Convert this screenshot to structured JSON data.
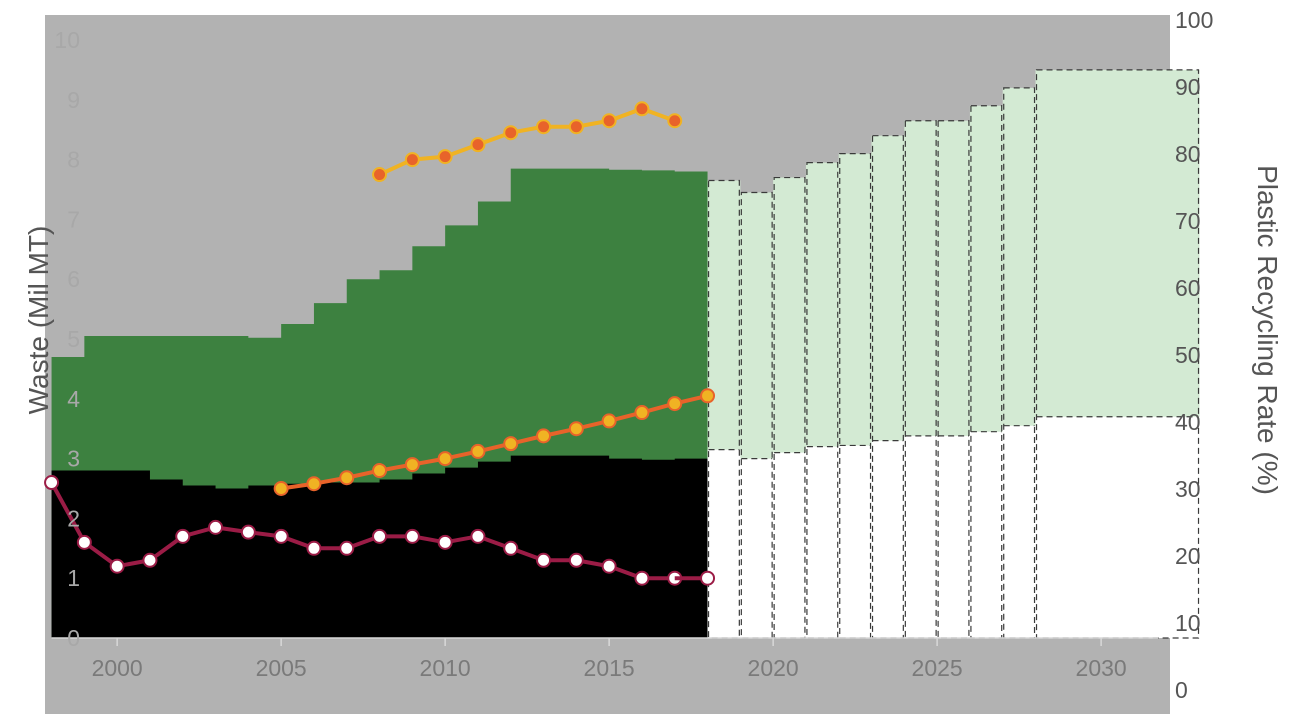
{
  "chart_data": {
    "type": "area",
    "title": "",
    "ylabel": "Waste (Mil MT)",
    "y2label": "Plastic Recycling Rate (%)",
    "xlim": [
      1997.8,
      2032.1
    ],
    "ylim": [
      0,
      10
    ],
    "y2lim": [
      0,
      100
    ],
    "x_ticks": [
      "2000",
      "2005",
      "2010",
      "2015",
      "2020",
      "2025",
      "2030"
    ],
    "y_ticks": [
      "0",
      "1",
      "2",
      "3",
      "4",
      "5",
      "6",
      "7",
      "8",
      "9",
      "10"
    ],
    "y2_ticks": [
      "0",
      "10",
      "20",
      "30",
      "40",
      "50",
      "60",
      "70",
      "80",
      "90",
      "100"
    ],
    "colors": {
      "plot_bg": "#b2b2b2",
      "historical_total": "#3d8140",
      "historical_base": "#000000",
      "projected_total": "#d3ead3",
      "projected_base": "#ffffff",
      "maroon_line": "#9b1c46",
      "orange_line": "#e8632a",
      "yellow_line": "#f0b323"
    },
    "series": [
      {
        "style": "historical-total-area",
        "x": [
          1998,
          1999,
          2000,
          2001,
          2002,
          2003,
          2004,
          2005,
          2006,
          2007,
          2008,
          2009,
          2010,
          2011,
          2012,
          2013,
          2014,
          2015,
          2016,
          2017,
          2018
        ],
        "values": [
          4.7,
          5.05,
          5.05,
          5.05,
          5.05,
          5.05,
          5.02,
          5.25,
          5.6,
          6.0,
          6.15,
          6.55,
          6.9,
          7.3,
          7.85,
          7.85,
          7.85,
          7.83,
          7.82,
          7.8,
          7.65
        ]
      },
      {
        "style": "historical-base-area",
        "x": [
          1998,
          1999,
          2000,
          2001,
          2002,
          2003,
          2004,
          2005,
          2006,
          2007,
          2008,
          2009,
          2010,
          2011,
          2012,
          2013,
          2014,
          2015,
          2016,
          2017,
          2018
        ],
        "values": [
          2.8,
          2.8,
          2.8,
          2.65,
          2.55,
          2.5,
          2.55,
          2.58,
          2.6,
          2.6,
          2.65,
          2.75,
          2.85,
          2.95,
          3.05,
          3.05,
          3.05,
          3.0,
          2.98,
          3.0,
          3.1
        ]
      },
      {
        "style": "projected-total-area",
        "x": [
          2018,
          2019,
          2020,
          2021,
          2022,
          2023,
          2024,
          2025,
          2026,
          2027,
          2028,
          2033
        ],
        "values": [
          7.65,
          7.45,
          7.7,
          7.95,
          8.1,
          8.4,
          8.65,
          8.65,
          8.9,
          9.2,
          9.5,
          9.5
        ]
      },
      {
        "style": "projected-base-area",
        "x": [
          2018,
          2019,
          2020,
          2021,
          2022,
          2023,
          2024,
          2025,
          2026,
          2027,
          2028,
          2033
        ],
        "values": [
          3.15,
          3.0,
          3.1,
          3.2,
          3.22,
          3.3,
          3.38,
          3.38,
          3.45,
          3.55,
          3.7,
          3.7
        ]
      },
      {
        "style": "maroon-line",
        "x": [
          1998,
          1999,
          2000,
          2001,
          2002,
          2003,
          2004,
          2005,
          2006,
          2007,
          2008,
          2009,
          2010,
          2011,
          2012,
          2013,
          2014,
          2015,
          2016,
          2017
        ],
        "values": [
          2.6,
          1.6,
          1.2,
          1.3,
          1.7,
          1.85,
          1.77,
          1.7,
          1.5,
          1.5,
          1.7,
          1.7,
          1.6,
          1.7,
          1.5,
          1.3,
          1.3,
          1.2,
          1.0,
          1.0
        ],
        "projected": {
          "x": [
            2017,
            2018
          ],
          "values": [
            1.0,
            1.0
          ]
        }
      },
      {
        "style": "orange-line",
        "x": [
          2005,
          2006,
          2007,
          2008,
          2009,
          2010,
          2011,
          2012,
          2013,
          2014,
          2015,
          2016,
          2017,
          2018
        ],
        "values": [
          2.5,
          2.58,
          2.68,
          2.8,
          2.9,
          3.0,
          3.12,
          3.25,
          3.38,
          3.5,
          3.63,
          3.77,
          3.92,
          4.05
        ]
      },
      {
        "style": "yellow-line",
        "x": [
          2008,
          2009,
          2010,
          2011,
          2012,
          2013,
          2014,
          2015,
          2016,
          2017,
          2018
        ],
        "values": [
          7.75,
          8.0,
          8.05,
          8.25,
          8.45,
          8.55,
          8.55,
          8.65,
          8.85,
          8.65,
          null
        ]
      }
    ]
  }
}
